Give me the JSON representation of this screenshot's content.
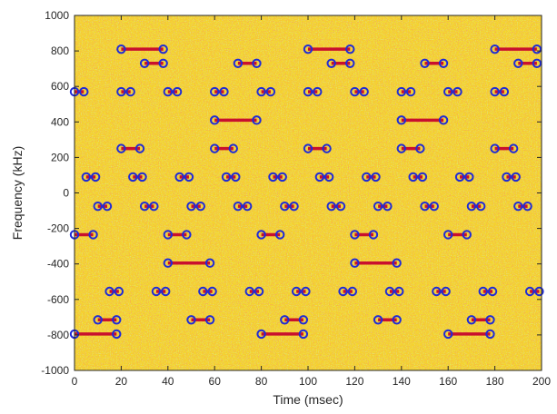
{
  "chart_data": {
    "type": "scatter",
    "title": "",
    "xlabel": "Time (msec)",
    "ylabel": "Frequency (kHz)",
    "xlim": [
      0,
      200
    ],
    "ylim": [
      -1000,
      1000
    ],
    "xticks": [
      0,
      20,
      40,
      60,
      80,
      100,
      120,
      140,
      160,
      180,
      200
    ],
    "yticks": [
      1000,
      800,
      600,
      400,
      200,
      0,
      -200,
      -400,
      -600,
      -800,
      -1000
    ],
    "grid": false,
    "legend": "none",
    "background": "noisy spectrogram, yellow",
    "colors": {
      "background": "#f5d52a",
      "noise_red": "#e8402a",
      "noise_green": "#b8d23a",
      "segment": "#c8102e",
      "marker": "#1f2bd6",
      "axis": "#262626"
    },
    "segments": [
      {
        "x0": 20,
        "x1": 38,
        "y": 810
      },
      {
        "x0": 30,
        "x1": 38,
        "y": 730
      },
      {
        "x0": 70,
        "x1": 78,
        "y": 730
      },
      {
        "x0": 100,
        "x1": 118,
        "y": 810
      },
      {
        "x0": 110,
        "x1": 118,
        "y": 730
      },
      {
        "x0": 150,
        "x1": 158,
        "y": 730
      },
      {
        "x0": 180,
        "x1": 198,
        "y": 810
      },
      {
        "x0": 190,
        "x1": 198,
        "y": 730
      },
      {
        "x0": 0,
        "x1": 4,
        "y": 570
      },
      {
        "x0": 20,
        "x1": 24,
        "y": 570
      },
      {
        "x0": 40,
        "x1": 44,
        "y": 570
      },
      {
        "x0": 60,
        "x1": 64,
        "y": 570
      },
      {
        "x0": 80,
        "x1": 84,
        "y": 570
      },
      {
        "x0": 100,
        "x1": 104,
        "y": 570
      },
      {
        "x0": 120,
        "x1": 124,
        "y": 570
      },
      {
        "x0": 140,
        "x1": 144,
        "y": 570
      },
      {
        "x0": 160,
        "x1": 164,
        "y": 570
      },
      {
        "x0": 180,
        "x1": 184,
        "y": 570
      },
      {
        "x0": 60,
        "x1": 78,
        "y": 410
      },
      {
        "x0": 140,
        "x1": 158,
        "y": 410
      },
      {
        "x0": 20,
        "x1": 28,
        "y": 250
      },
      {
        "x0": 60,
        "x1": 68,
        "y": 250
      },
      {
        "x0": 100,
        "x1": 108,
        "y": 250
      },
      {
        "x0": 140,
        "x1": 148,
        "y": 250
      },
      {
        "x0": 180,
        "x1": 188,
        "y": 250
      },
      {
        "x0": 5,
        "x1": 9,
        "y": 90
      },
      {
        "x0": 25,
        "x1": 29,
        "y": 90
      },
      {
        "x0": 45,
        "x1": 49,
        "y": 90
      },
      {
        "x0": 65,
        "x1": 69,
        "y": 90
      },
      {
        "x0": 85,
        "x1": 89,
        "y": 90
      },
      {
        "x0": 105,
        "x1": 109,
        "y": 90
      },
      {
        "x0": 125,
        "x1": 129,
        "y": 90
      },
      {
        "x0": 145,
        "x1": 149,
        "y": 90
      },
      {
        "x0": 165,
        "x1": 169,
        "y": 90
      },
      {
        "x0": 185,
        "x1": 189,
        "y": 90
      },
      {
        "x0": 10,
        "x1": 14,
        "y": -75
      },
      {
        "x0": 30,
        "x1": 34,
        "y": -75
      },
      {
        "x0": 50,
        "x1": 54,
        "y": -75
      },
      {
        "x0": 70,
        "x1": 74,
        "y": -75
      },
      {
        "x0": 90,
        "x1": 94,
        "y": -75
      },
      {
        "x0": 110,
        "x1": 114,
        "y": -75
      },
      {
        "x0": 130,
        "x1": 134,
        "y": -75
      },
      {
        "x0": 150,
        "x1": 154,
        "y": -75
      },
      {
        "x0": 170,
        "x1": 174,
        "y": -75
      },
      {
        "x0": 190,
        "x1": 194,
        "y": -75
      },
      {
        "x0": 0,
        "x1": 8,
        "y": -235
      },
      {
        "x0": 40,
        "x1": 48,
        "y": -235
      },
      {
        "x0": 80,
        "x1": 88,
        "y": -235
      },
      {
        "x0": 120,
        "x1": 128,
        "y": -235
      },
      {
        "x0": 160,
        "x1": 168,
        "y": -235
      },
      {
        "x0": 40,
        "x1": 58,
        "y": -395
      },
      {
        "x0": 120,
        "x1": 138,
        "y": -395
      },
      {
        "x0": 15,
        "x1": 19,
        "y": -555
      },
      {
        "x0": 35,
        "x1": 39,
        "y": -555
      },
      {
        "x0": 55,
        "x1": 59,
        "y": -555
      },
      {
        "x0": 75,
        "x1": 79,
        "y": -555
      },
      {
        "x0": 95,
        "x1": 99,
        "y": -555
      },
      {
        "x0": 115,
        "x1": 119,
        "y": -555
      },
      {
        "x0": 135,
        "x1": 139,
        "y": -555
      },
      {
        "x0": 155,
        "x1": 159,
        "y": -555
      },
      {
        "x0": 175,
        "x1": 179,
        "y": -555
      },
      {
        "x0": 195,
        "x1": 199,
        "y": -555
      },
      {
        "x0": 10,
        "x1": 18,
        "y": -715
      },
      {
        "x0": 50,
        "x1": 58,
        "y": -715
      },
      {
        "x0": 90,
        "x1": 98,
        "y": -715
      },
      {
        "x0": 130,
        "x1": 138,
        "y": -715
      },
      {
        "x0": 170,
        "x1": 178,
        "y": -715
      },
      {
        "x0": 0,
        "x1": 18,
        "y": -795
      },
      {
        "x0": 80,
        "x1": 98,
        "y": -795
      },
      {
        "x0": 160,
        "x1": 178,
        "y": -795
      }
    ]
  }
}
